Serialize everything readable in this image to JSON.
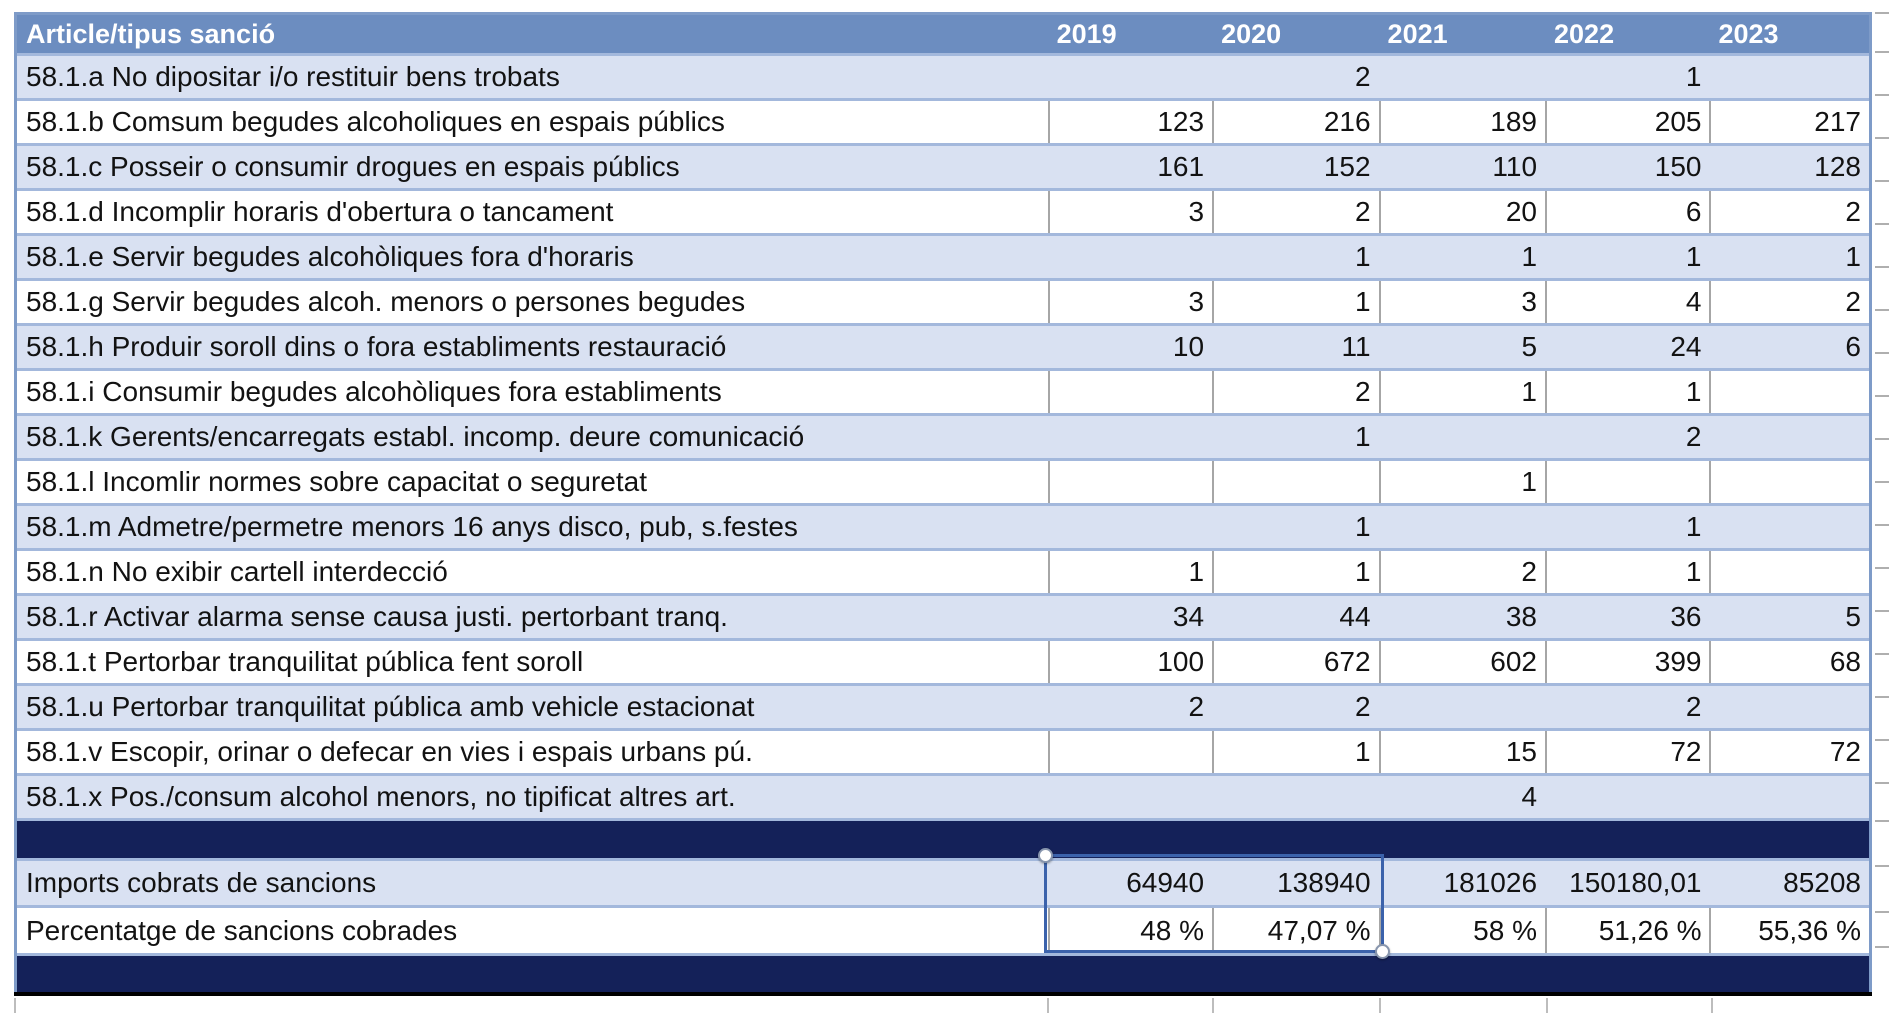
{
  "table": {
    "header": {
      "label": "Article/tipus sanció",
      "years": [
        "2019",
        "2020",
        "2021",
        "2022",
        "2023"
      ]
    },
    "rows": [
      {
        "label": "58.1.a No dipositar i/o restituir bens trobats",
        "values": [
          "",
          "2",
          "",
          "1",
          ""
        ]
      },
      {
        "label": "58.1.b Comsum begudes alcoholiques en espais públics",
        "values": [
          "123",
          "216",
          "189",
          "205",
          "217"
        ]
      },
      {
        "label": "58.1.c Posseir o consumir drogues en espais públics",
        "values": [
          "161",
          "152",
          "110",
          "150",
          "128"
        ]
      },
      {
        "label": "58.1.d Incomplir horaris d'obertura o tancament",
        "values": [
          "3",
          "2",
          "20",
          "6",
          "2"
        ]
      },
      {
        "label": "58.1.e Servir begudes alcohòliques fora d'horaris",
        "values": [
          "",
          "1",
          "1",
          "1",
          "1"
        ]
      },
      {
        "label": "58.1.g Servir begudes alcoh. menors o persones begudes",
        "values": [
          "3",
          "1",
          "3",
          "4",
          "2"
        ]
      },
      {
        "label": "58.1.h Produir soroll dins o fora establiments restauració",
        "values": [
          "10",
          "11",
          "5",
          "24",
          "6"
        ]
      },
      {
        "label": "58.1.i Consumir begudes alcohòliques fora establiments",
        "values": [
          "",
          "2",
          "1",
          "1",
          ""
        ]
      },
      {
        "label": "58.1.k Gerents/encarregats establ. incomp. deure comunicació",
        "values": [
          "",
          "1",
          "",
          "2",
          ""
        ]
      },
      {
        "label": "58.1.l Incomlir normes sobre capacitat o seguretat",
        "values": [
          "",
          "",
          "1",
          "",
          ""
        ]
      },
      {
        "label": "58.1.m Admetre/permetre menors 16 anys disco, pub, s.festes",
        "values": [
          "",
          "1",
          "",
          "1",
          ""
        ]
      },
      {
        "label": "58.1.n No exibir cartell interdecció",
        "values": [
          "1",
          "1",
          "2",
          "1",
          ""
        ]
      },
      {
        "label": "58.1.r Activar alarma sense causa justi. pertorbant tranq.",
        "values": [
          "34",
          "44",
          "38",
          "36",
          "5"
        ]
      },
      {
        "label": "58.1.t Pertorbar tranquilitat pública fent soroll",
        "values": [
          "100",
          "672",
          "602",
          "399",
          "68"
        ]
      },
      {
        "label": "58.1.u Pertorbar tranquilitat pública amb vehicle estacionat",
        "values": [
          "2",
          "2",
          "",
          "2",
          ""
        ]
      },
      {
        "label": "58.1.v Escopir, orinar o defecar en vies i espais urbans pú.",
        "values": [
          "",
          "1",
          "15",
          "72",
          "72"
        ]
      },
      {
        "label": "58.1.x Pos./consum alcohol menors, no tipificat altres art.",
        "values": [
          "",
          "",
          "4",
          "",
          ""
        ]
      }
    ],
    "summary": [
      {
        "label": "Imports cobrats de sancions",
        "values": [
          "64940",
          "138940",
          "181026",
          "150180,01",
          "85208"
        ]
      },
      {
        "label": "Percentatge de sancions cobrades",
        "values": [
          "48 %",
          "47,07 %",
          "58 %",
          "51,26 %",
          "55,36 %"
        ]
      }
    ]
  },
  "selection": {
    "anchor_columns": [
      "2019",
      "2020"
    ],
    "anchor_rows": [
      "Imports cobrats de sancions",
      "Percentatge de sancions cobrades"
    ]
  },
  "colors": {
    "header_bg": "#6C8DC0",
    "light_row_bg": "#D9E1F2",
    "navy_band_bg": "#142159",
    "row_border": "#A3B8DC",
    "cell_border_gray": "#A6A6A6",
    "selection_border": "#3B62AB",
    "baseline_black": "#000000"
  }
}
